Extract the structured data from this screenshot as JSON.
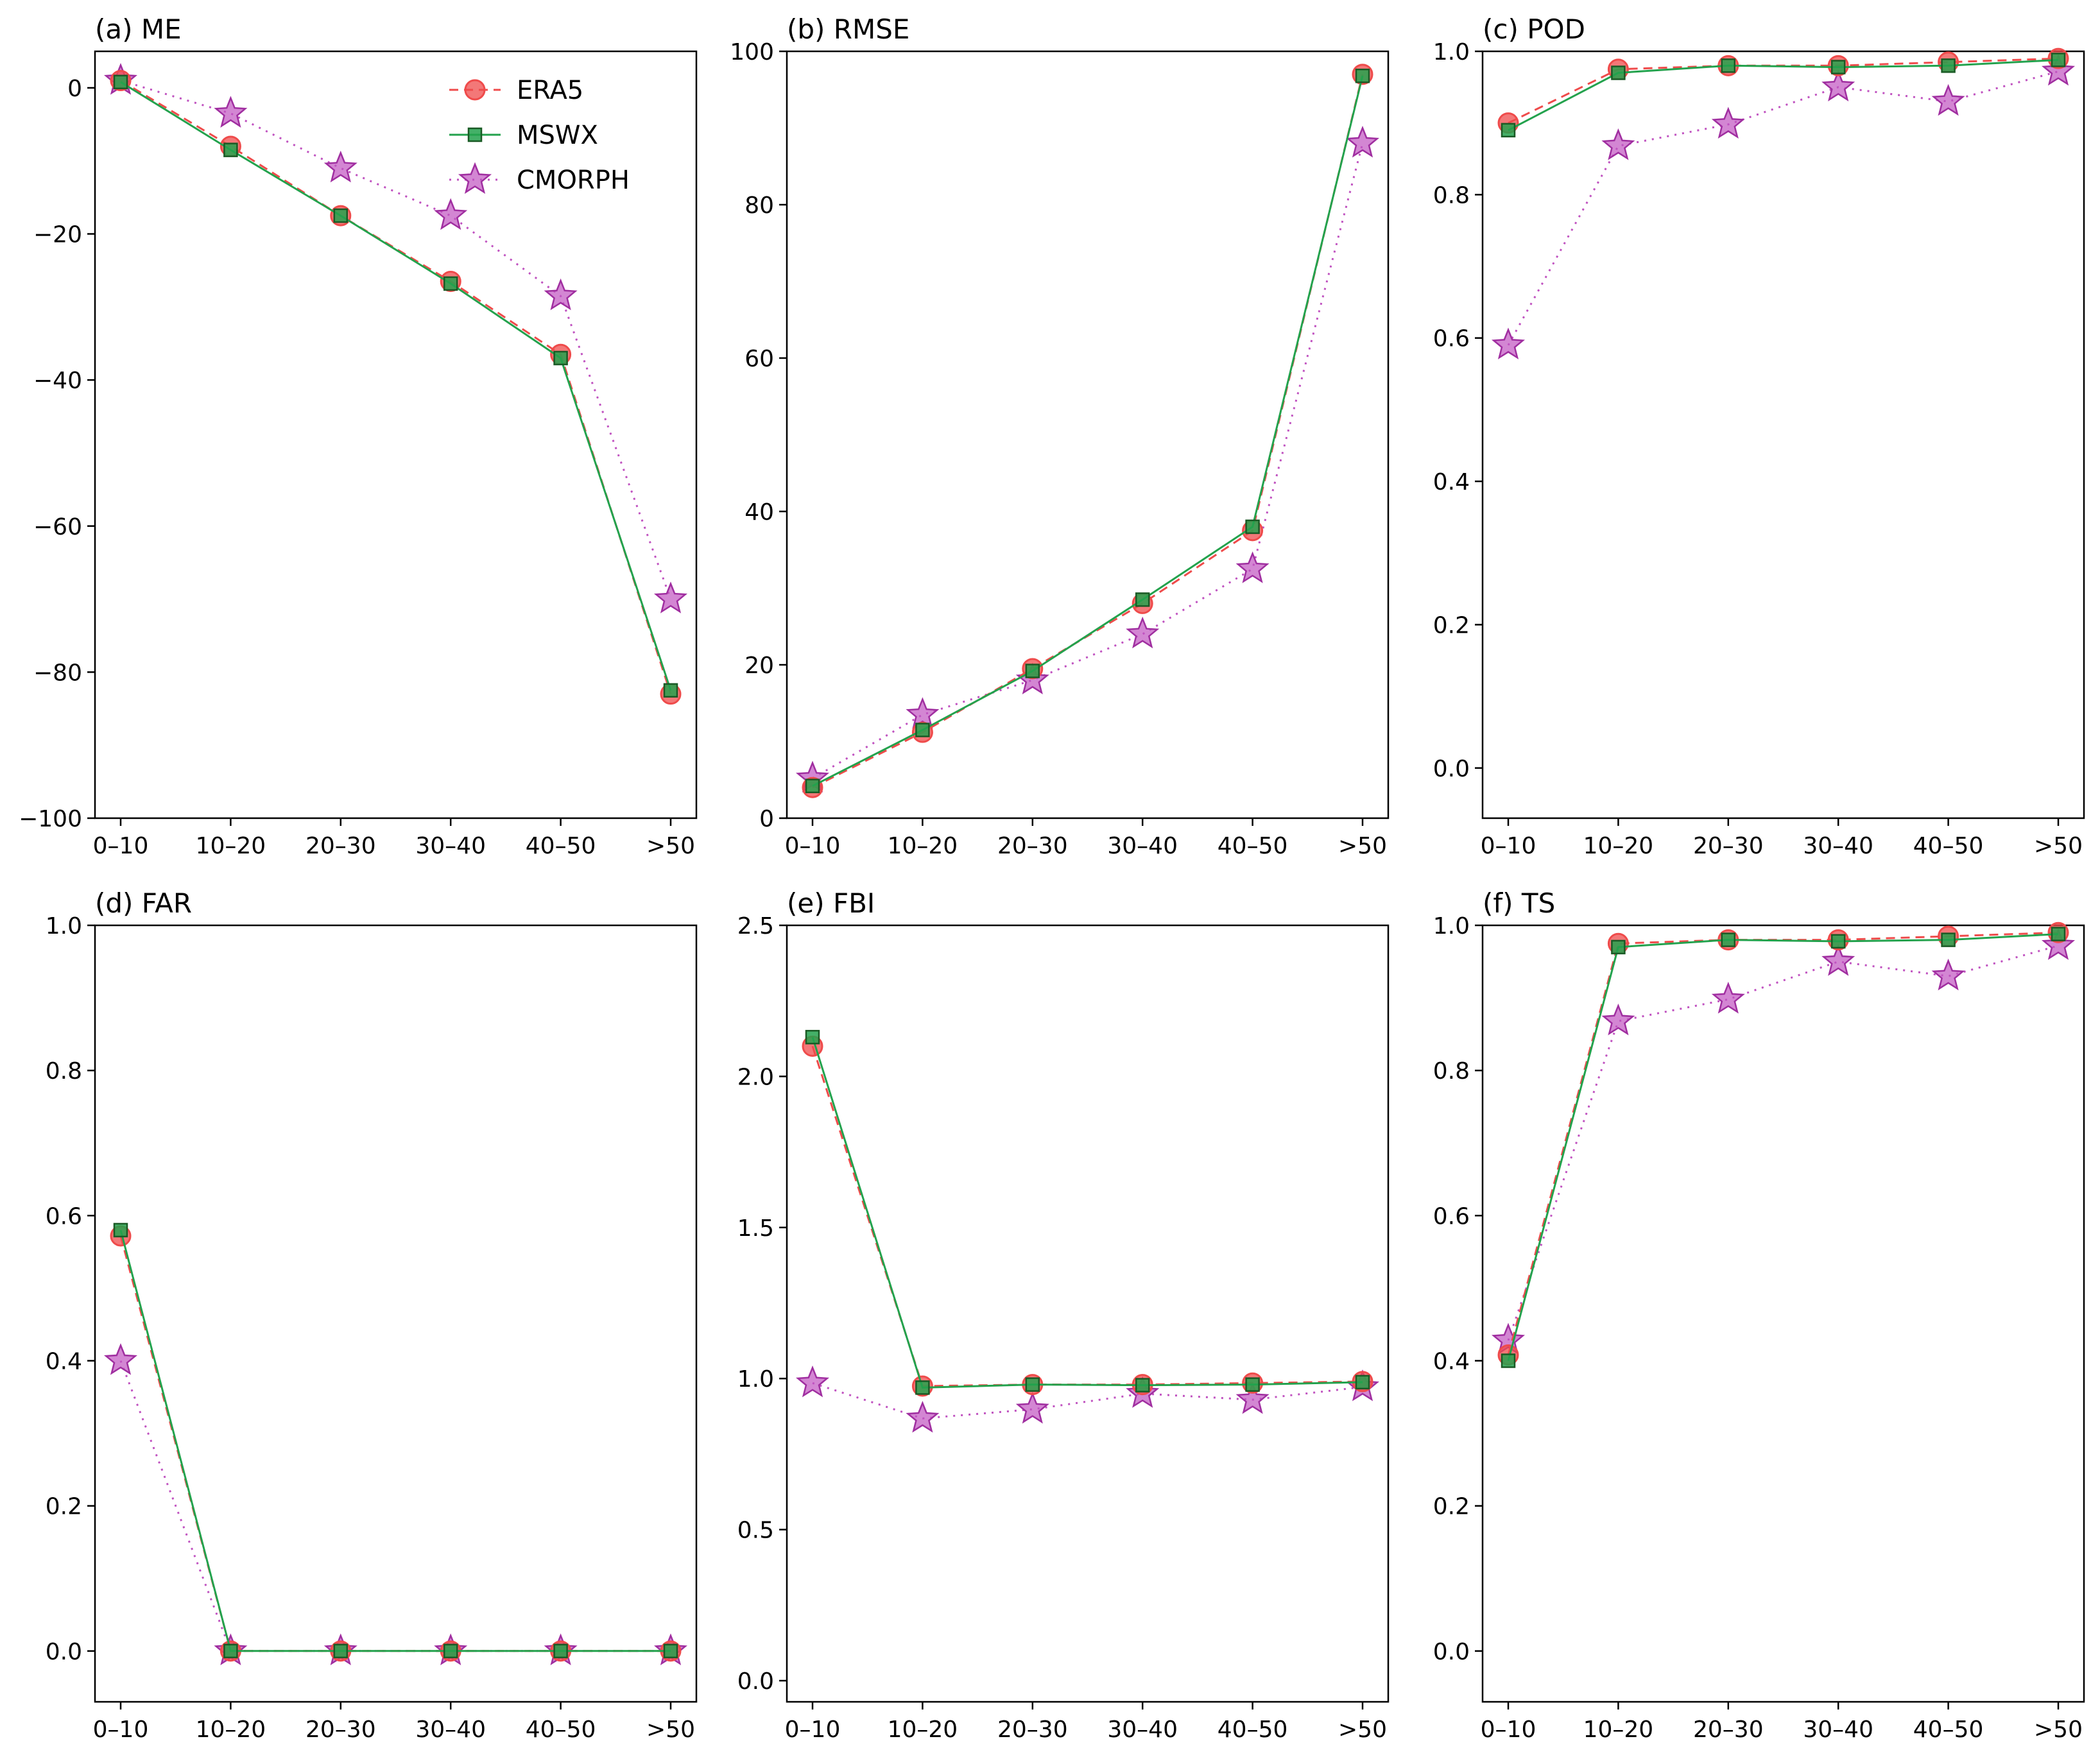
{
  "colors": {
    "ERA5": "#ef4b4b",
    "MSWX": "#23a24d",
    "CMORPH": "#c052c0",
    "axes": "#000000",
    "background": "#ffffff"
  },
  "legend": {
    "placement": "top-right of panel (a)",
    "entries": [
      {
        "name": "ERA5",
        "marker": "circle",
        "linestyle": "dashed"
      },
      {
        "name": "MSWX",
        "marker": "square",
        "linestyle": "solid"
      },
      {
        "name": "CMORPH",
        "marker": "star",
        "linestyle": "dotted"
      }
    ]
  },
  "chart_data": [
    {
      "type": "line",
      "title": "(a) ME",
      "categories": [
        "0–10",
        "10–20",
        "20–30",
        "30–40",
        "40–50",
        ">50"
      ],
      "ylim": [
        -100,
        5
      ],
      "yticks": [
        0,
        -20,
        -40,
        -60,
        -80,
        -100
      ],
      "ytick_labels": [
        "0",
        "−20",
        "−40",
        "−60",
        "−80",
        "−100"
      ],
      "series": [
        {
          "name": "ERA5",
          "values": [
            1,
            -8,
            -17.5,
            -26.5,
            -36.5,
            -83
          ]
        },
        {
          "name": "MSWX",
          "values": [
            0.8,
            -8.5,
            -17.5,
            -26.8,
            -37,
            -82.5
          ]
        },
        {
          "name": "CMORPH",
          "values": [
            1,
            -3.5,
            -11,
            -17.5,
            -28.5,
            -70
          ]
        }
      ]
    },
    {
      "type": "line",
      "title": "(b) RMSE",
      "categories": [
        "0–10",
        "10–20",
        "20–30",
        "30–40",
        "40–50",
        ">50"
      ],
      "ylim": [
        0,
        100
      ],
      "yticks": [
        0,
        20,
        40,
        60,
        80,
        100
      ],
      "ytick_labels": [
        "0",
        "20",
        "40",
        "60",
        "80",
        "100"
      ],
      "series": [
        {
          "name": "ERA5",
          "values": [
            4,
            11.2,
            19.5,
            28,
            37.5,
            97
          ]
        },
        {
          "name": "MSWX",
          "values": [
            4.2,
            11.5,
            19.2,
            28.5,
            38,
            96.8
          ]
        },
        {
          "name": "CMORPH",
          "values": [
            5.2,
            13.5,
            18,
            24,
            32.5,
            88
          ]
        }
      ]
    },
    {
      "type": "line",
      "title": "(c) POD",
      "categories": [
        "0–10",
        "10–20",
        "20–30",
        "30–40",
        "40–50",
        ">50"
      ],
      "ylim": [
        -0.07,
        1.0
      ],
      "yticks": [
        0.0,
        0.2,
        0.4,
        0.6,
        0.8,
        1.0
      ],
      "ytick_labels": [
        "0.0",
        "0.2",
        "0.4",
        "0.6",
        "0.8",
        "1.0"
      ],
      "series": [
        {
          "name": "ERA5",
          "values": [
            0.9,
            0.975,
            0.98,
            0.98,
            0.985,
            0.99
          ]
        },
        {
          "name": "MSWX",
          "values": [
            0.89,
            0.97,
            0.98,
            0.978,
            0.98,
            0.988
          ]
        },
        {
          "name": "CMORPH",
          "values": [
            0.59,
            0.868,
            0.898,
            0.95,
            0.93,
            0.972
          ]
        }
      ]
    },
    {
      "type": "line",
      "title": "(d) FAR",
      "categories": [
        "0–10",
        "10–20",
        "20–30",
        "30–40",
        "40–50",
        ">50"
      ],
      "ylim": [
        -0.07,
        1.0
      ],
      "yticks": [
        0.0,
        0.2,
        0.4,
        0.6,
        0.8,
        1.0
      ],
      "ytick_labels": [
        "0.0",
        "0.2",
        "0.4",
        "0.6",
        "0.8",
        "1.0"
      ],
      "series": [
        {
          "name": "ERA5",
          "values": [
            0.572,
            0.0,
            0.0,
            0.0,
            0.0,
            0.0
          ]
        },
        {
          "name": "MSWX",
          "values": [
            0.58,
            0.0,
            0.0,
            0.0,
            0.0,
            0.0
          ]
        },
        {
          "name": "CMORPH",
          "values": [
            0.4,
            0.0,
            0.0,
            0.0,
            0.0,
            0.0
          ]
        }
      ]
    },
    {
      "type": "line",
      "title": "(e) FBI",
      "categories": [
        "0–10",
        "10–20",
        "20–30",
        "30–40",
        "40–50",
        ">50"
      ],
      "ylim": [
        -0.07,
        2.5
      ],
      "yticks": [
        0.0,
        0.5,
        1.0,
        1.5,
        2.0,
        2.5
      ],
      "ytick_labels": [
        "0.0",
        "0.5",
        "1.0",
        "1.5",
        "2.0",
        "2.5"
      ],
      "series": [
        {
          "name": "ERA5",
          "values": [
            2.1,
            0.975,
            0.98,
            0.98,
            0.985,
            0.99
          ]
        },
        {
          "name": "MSWX",
          "values": [
            2.13,
            0.97,
            0.98,
            0.978,
            0.98,
            0.988
          ]
        },
        {
          "name": "CMORPH",
          "values": [
            0.985,
            0.868,
            0.898,
            0.95,
            0.93,
            0.972
          ]
        }
      ]
    },
    {
      "type": "line",
      "title": "(f) TS",
      "categories": [
        "0–10",
        "10–20",
        "20–30",
        "30–40",
        "40–50",
        ">50"
      ],
      "ylim": [
        -0.07,
        1.0
      ],
      "yticks": [
        0.0,
        0.2,
        0.4,
        0.6,
        0.8,
        1.0
      ],
      "ytick_labels": [
        "0.0",
        "0.2",
        "0.4",
        "0.6",
        "0.8",
        "1.0"
      ],
      "series": [
        {
          "name": "ERA5",
          "values": [
            0.408,
            0.975,
            0.98,
            0.98,
            0.985,
            0.99
          ]
        },
        {
          "name": "MSWX",
          "values": [
            0.4,
            0.97,
            0.98,
            0.978,
            0.98,
            0.988
          ]
        },
        {
          "name": "CMORPH",
          "values": [
            0.428,
            0.868,
            0.898,
            0.95,
            0.93,
            0.972
          ]
        }
      ]
    }
  ]
}
